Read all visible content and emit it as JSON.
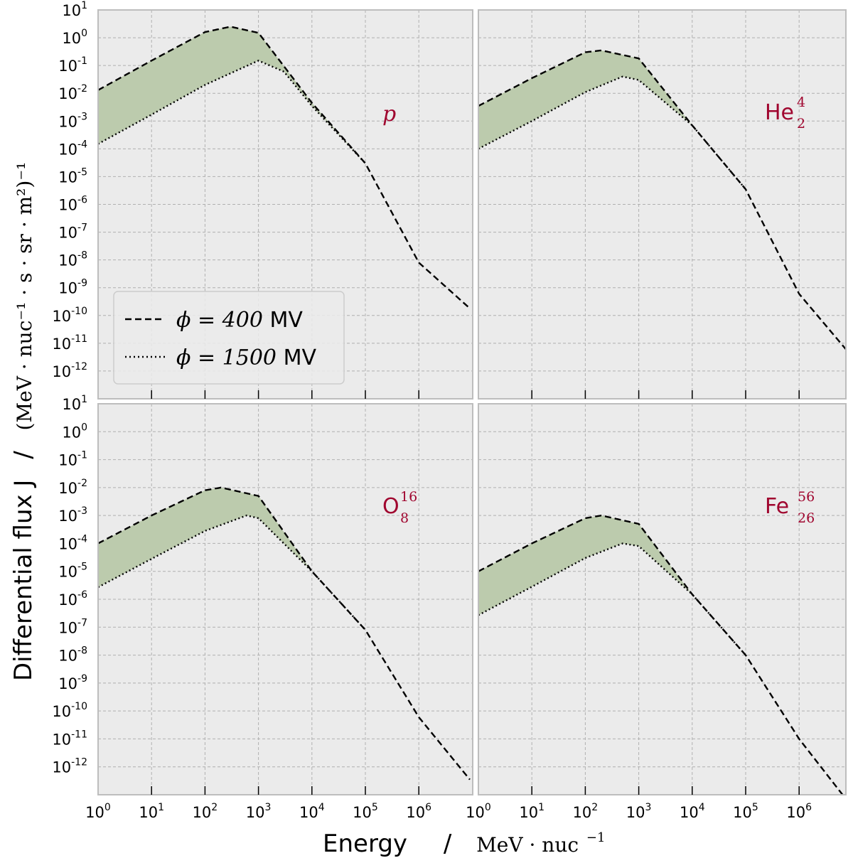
{
  "chart_data": {
    "type": "line",
    "x_scale": "log",
    "y_scale": "log",
    "xlim": [
      1,
      9000000
    ],
    "ylim": [
      1e-13,
      10
    ],
    "grid": true,
    "xlabel": "Energy",
    "xlabel_unit": "MeV · nuc",
    "xlabel_unit_sup": "−1",
    "ylabel": "Differential flux J",
    "ylabel_unit": "(MeV · nuc⁻¹ · s · sr · m²)⁻¹",
    "label_separator": "/",
    "x_ticks": [
      {
        "base": "10",
        "exp": "0"
      },
      {
        "base": "10",
        "exp": "1"
      },
      {
        "base": "10",
        "exp": "2"
      },
      {
        "base": "10",
        "exp": "3"
      },
      {
        "base": "10",
        "exp": "4"
      },
      {
        "base": "10",
        "exp": "5"
      },
      {
        "base": "10",
        "exp": "6"
      }
    ],
    "y_ticks": [
      {
        "base": "10",
        "exp": "1"
      },
      {
        "base": "10",
        "exp": "0"
      },
      {
        "base": "10",
        "exp": "-1"
      },
      {
        "base": "10",
        "exp": "-2"
      },
      {
        "base": "10",
        "exp": "-3"
      },
      {
        "base": "10",
        "exp": "-4"
      },
      {
        "base": "10",
        "exp": "-5"
      },
      {
        "base": "10",
        "exp": "-6"
      },
      {
        "base": "10",
        "exp": "-7"
      },
      {
        "base": "10",
        "exp": "-8"
      },
      {
        "base": "10",
        "exp": "-9"
      },
      {
        "base": "10",
        "exp": "-10"
      },
      {
        "base": "10",
        "exp": "-11"
      },
      {
        "base": "10",
        "exp": "-12"
      }
    ],
    "legend": {
      "placement": "lower-left of top-left panel",
      "entries": [
        {
          "phi_symbol": "ϕ",
          "equals": " = ",
          "value": "400",
          "unit": " MV",
          "style": "dashed"
        },
        {
          "phi_symbol": "ϕ",
          "equals": " = ",
          "value": "1500",
          "unit": " MV",
          "style": "dotted"
        }
      ]
    },
    "colors": {
      "band_fill": "#bccbad",
      "panel_background": "#ebebeb",
      "species_label": "#a0062f",
      "line": "#000000"
    },
    "panels": [
      {
        "species": "p",
        "species_sup": "",
        "species_sub": "",
        "label_italic": true,
        "series": [
          {
            "phi_MV": 400,
            "style": "dashed",
            "x": [
              1,
              10,
              100,
              300,
              1000,
              10000,
              100000,
              1000000,
              9000000
            ],
            "y": [
              0.013,
              0.15,
              1.6,
              2.5,
              1.5,
              0.0045,
              3e-05,
              8e-09,
              1.8e-10
            ]
          },
          {
            "phi_MV": 1500,
            "style": "dotted",
            "x": [
              1,
              10,
              100,
              1000,
              3000,
              10000,
              100000
            ],
            "y": [
              0.00015,
              0.0017,
              0.02,
              0.15,
              0.06,
              0.0035,
              3e-05
            ]
          }
        ]
      },
      {
        "species": "He",
        "species_sup": "4",
        "species_sub": "2",
        "label_italic": false,
        "series": [
          {
            "phi_MV": 400,
            "style": "dashed",
            "x": [
              1,
              10,
              100,
              200,
              1000,
              10000,
              100000,
              1000000,
              9000000
            ],
            "y": [
              0.0035,
              0.035,
              0.3,
              0.35,
              0.18,
              0.0007,
              3.5e-06,
              6e-10,
              4e-12
            ]
          },
          {
            "phi_MV": 1500,
            "style": "dotted",
            "x": [
              1,
              10,
              100,
              500,
              1000,
              10000,
              100000
            ],
            "y": [
              0.0001,
              0.001,
              0.011,
              0.04,
              0.03,
              0.0007,
              3.5e-06
            ]
          }
        ]
      },
      {
        "species": "O",
        "species_sup": "16",
        "species_sub": "8",
        "label_italic": false,
        "series": [
          {
            "phi_MV": 400,
            "style": "dashed",
            "x": [
              1,
              10,
              100,
              200,
              1000,
              10000,
              100000,
              1000000,
              9000000
            ],
            "y": [
              0.0001,
              0.001,
              0.008,
              0.01,
              0.005,
              1e-05,
              8e-08,
              6e-11,
              3.5e-13
            ]
          },
          {
            "phi_MV": 1500,
            "style": "dotted",
            "x": [
              1,
              10,
              100,
              600,
              1000,
              10000,
              100000
            ],
            "y": [
              2.7e-06,
              2.8e-05,
              0.00028,
              0.001,
              0.0008,
              1e-05,
              8e-08
            ]
          }
        ]
      },
      {
        "species": "Fe",
        "species_sup": "56",
        "species_sub": "26",
        "label_italic": false,
        "series": [
          {
            "phi_MV": 400,
            "style": "dashed",
            "x": [
              1,
              10,
              100,
              200,
              1000,
              10000,
              100000,
              1000000,
              9000000
            ],
            "y": [
              1e-05,
              0.0001,
              0.0008,
              0.001,
              0.0005,
              1.5e-06,
              1e-08,
              1e-11,
              4.5e-14
            ]
          },
          {
            "phi_MV": 1500,
            "style": "dotted",
            "x": [
              1,
              10,
              100,
              500,
              1000,
              10000,
              100000
            ],
            "y": [
              2.7e-07,
              2.8e-06,
              3e-05,
              0.0001,
              8e-05,
              1.5e-06,
              1e-08
            ]
          }
        ]
      }
    ]
  }
}
